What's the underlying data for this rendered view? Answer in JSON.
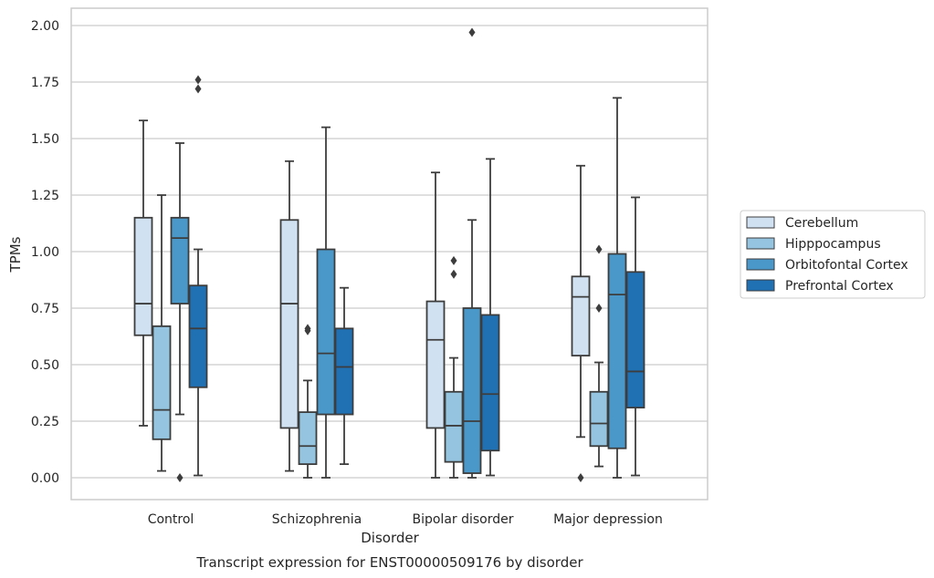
{
  "chart_data": {
    "type": "box",
    "xlabel": "Disorder",
    "ylabel": "TPMs",
    "caption": "Transcript expression for ENST00000509176 by disorder",
    "ylim": [
      -0.1,
      2.07
    ],
    "yticks": [
      0.0,
      0.25,
      0.5,
      0.75,
      1.0,
      1.25,
      1.5,
      1.75,
      2.0
    ],
    "ytick_labels": [
      "0.00",
      "0.25",
      "0.50",
      "0.75",
      "1.00",
      "1.25",
      "1.50",
      "1.75",
      "2.00"
    ],
    "grid": true,
    "legend_position": "right, outside plot",
    "categories": [
      "Control",
      "Schizophrenia",
      "Bipolar disorder",
      "Major depression"
    ],
    "series": [
      {
        "name": "Cerebellum",
        "color": "#d0e1f2",
        "boxes": [
          {
            "whislo": 0.23,
            "q1": 0.63,
            "med": 0.77,
            "q3": 1.15,
            "whishi": 1.58,
            "fliers": []
          },
          {
            "whislo": 0.03,
            "q1": 0.22,
            "med": 0.77,
            "q3": 1.14,
            "whishi": 1.4,
            "fliers": []
          },
          {
            "whislo": 0.0,
            "q1": 0.22,
            "med": 0.61,
            "q3": 0.78,
            "whishi": 1.35,
            "fliers": []
          },
          {
            "whislo": 0.18,
            "q1": 0.54,
            "med": 0.8,
            "q3": 0.89,
            "whishi": 1.38,
            "fliers": [
              0.0
            ]
          }
        ]
      },
      {
        "name": "Hipppocampus",
        "color": "#94c4df",
        "boxes": [
          {
            "whislo": 0.03,
            "q1": 0.17,
            "med": 0.3,
            "q3": 0.67,
            "whishi": 1.25,
            "fliers": []
          },
          {
            "whislo": 0.0,
            "q1": 0.06,
            "med": 0.14,
            "q3": 0.29,
            "whishi": 0.43,
            "fliers": [
              0.65,
              0.66
            ]
          },
          {
            "whislo": 0.0,
            "q1": 0.07,
            "med": 0.23,
            "q3": 0.38,
            "whishi": 0.53,
            "fliers": [
              0.9,
              0.96
            ]
          },
          {
            "whislo": 0.05,
            "q1": 0.14,
            "med": 0.24,
            "q3": 0.38,
            "whishi": 0.51,
            "fliers": [
              0.75,
              1.01
            ]
          }
        ]
      },
      {
        "name": "Orbitofontal Cortex",
        "color": "#4a98c9",
        "boxes": [
          {
            "whislo": 0.28,
            "q1": 0.77,
            "med": 1.06,
            "q3": 1.15,
            "whishi": 1.48,
            "fliers": [
              0.0
            ]
          },
          {
            "whislo": 0.0,
            "q1": 0.28,
            "med": 0.55,
            "q3": 1.01,
            "whishi": 1.55,
            "fliers": []
          },
          {
            "whislo": 0.0,
            "q1": 0.02,
            "med": 0.25,
            "q3": 0.75,
            "whishi": 1.14,
            "fliers": [
              1.97
            ]
          },
          {
            "whislo": 0.0,
            "q1": 0.13,
            "med": 0.81,
            "q3": 0.99,
            "whishi": 1.68,
            "fliers": []
          }
        ]
      },
      {
        "name": "Prefrontal Cortex",
        "color": "#2070b4",
        "boxes": [
          {
            "whislo": 0.01,
            "q1": 0.4,
            "med": 0.66,
            "q3": 0.85,
            "whishi": 1.01,
            "fliers": [
              1.72,
              1.76
            ]
          },
          {
            "whislo": 0.06,
            "q1": 0.28,
            "med": 0.49,
            "q3": 0.66,
            "whishi": 0.84,
            "fliers": []
          },
          {
            "whislo": 0.01,
            "q1": 0.12,
            "med": 0.37,
            "q3": 0.72,
            "whishi": 1.41,
            "fliers": []
          },
          {
            "whislo": 0.01,
            "q1": 0.31,
            "med": 0.47,
            "q3": 0.91,
            "whishi": 1.24,
            "fliers": []
          }
        ]
      }
    ]
  }
}
